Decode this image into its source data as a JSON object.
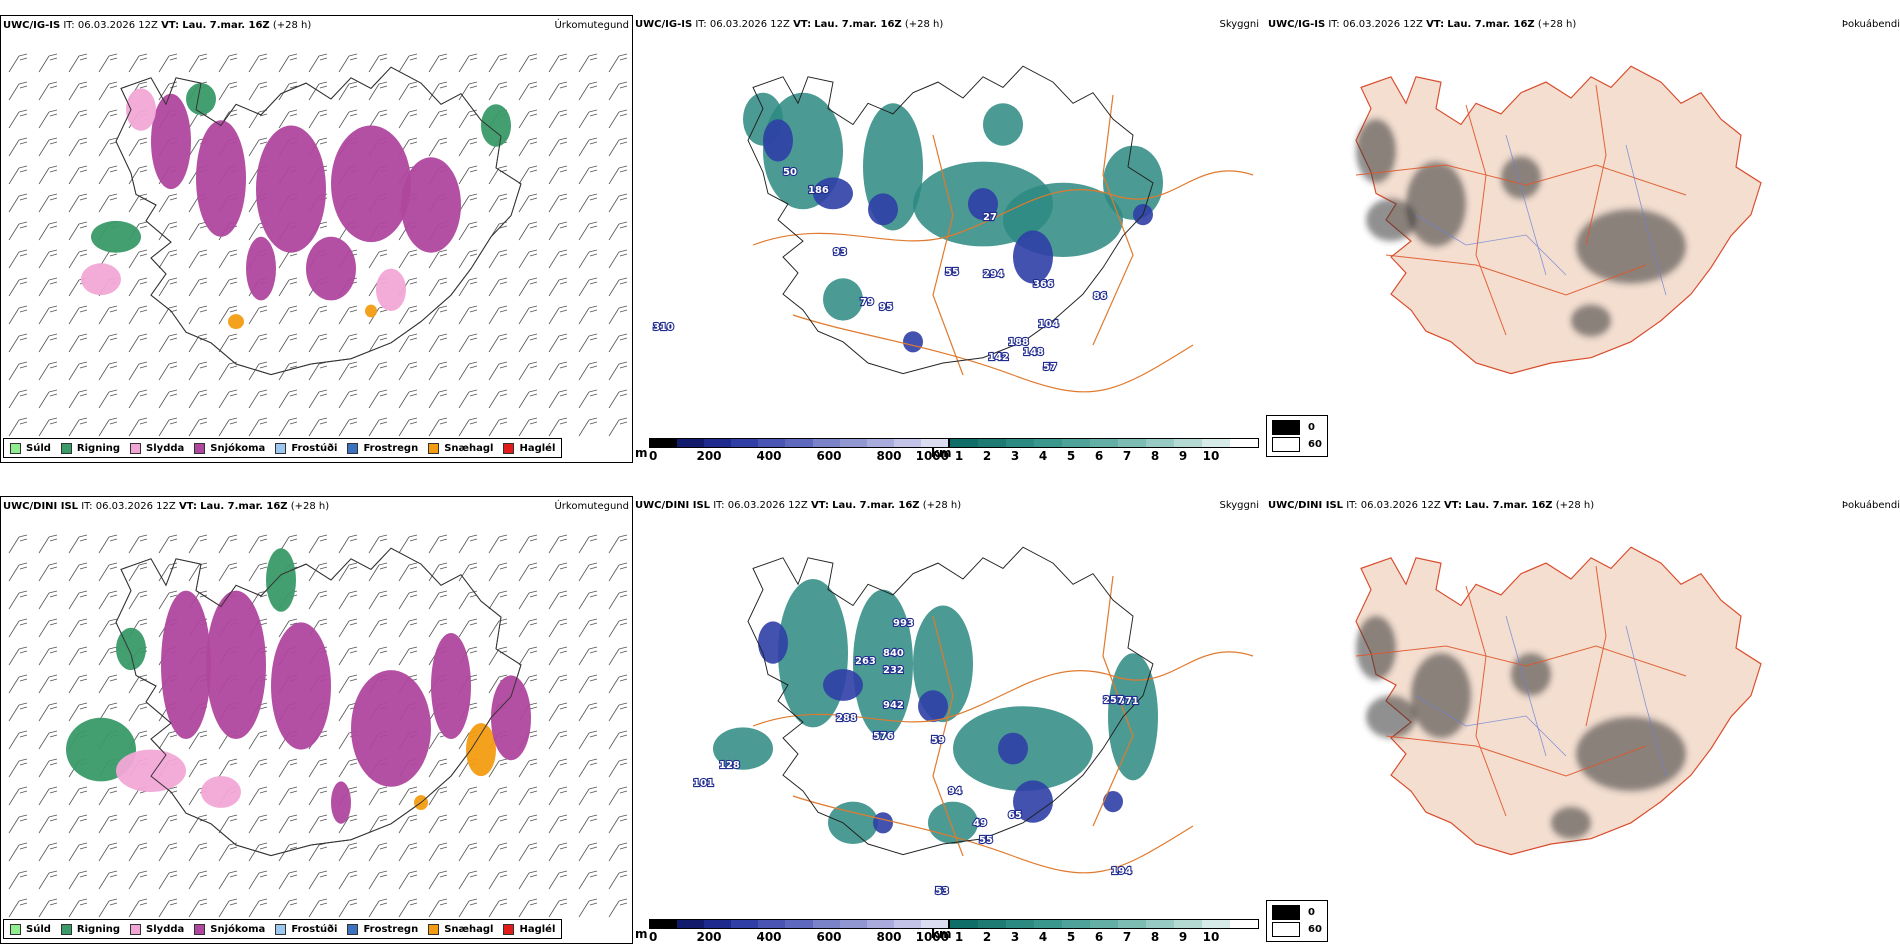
{
  "rows": [
    {
      "model": "UWC/IG-IS",
      "it_label": "IT:",
      "it_value": "06.03.2026 12Z",
      "vt_label": "VT:",
      "vt_value": "Lau. 7.mar. 16Z",
      "lead": "(+28 h)"
    },
    {
      "model": "UWC/DINI ISL",
      "it_label": "IT:",
      "it_value": "06.03.2026 12Z",
      "vt_label": "VT:",
      "vt_value": "Lau. 7.mar. 16Z",
      "lead": "(+28 h)"
    }
  ],
  "panel_titles": {
    "precip": "Úrkomutegund",
    "cloud": "Skyggni",
    "cover": "Þokuábendi"
  },
  "precip_legend": [
    {
      "label": "Súld",
      "color": "#90ee90"
    },
    {
      "label": "Rigning",
      "color": "#3a9a68"
    },
    {
      "label": "Slydda",
      "color": "#f2a6d6"
    },
    {
      "label": "Snjókoma",
      "color": "#b0479e"
    },
    {
      "label": "Frostúði",
      "color": "#9cc8ef"
    },
    {
      "label": "Frostregn",
      "color": "#3a72c0"
    },
    {
      "label": "Snæhagl",
      "color": "#f39c12"
    },
    {
      "label": "Haglél",
      "color": "#e21b1b"
    }
  ],
  "height_bar": {
    "unit": "m",
    "ticks": [
      "0",
      "200",
      "400",
      "600",
      "800",
      "1000"
    ],
    "colors": [
      "#000000",
      "#111a6b",
      "#1f2a8f",
      "#2f3fa6",
      "#4a55b3",
      "#5e69bd",
      "#7a82c8",
      "#9097d1",
      "#a8abdb",
      "#c2c3e6",
      "#dcdcf0"
    ]
  },
  "dist_bar": {
    "unit": "km",
    "ticks": [
      "1",
      "2",
      "3",
      "4",
      "5",
      "6",
      "7",
      "8",
      "9",
      "10"
    ],
    "colors": [
      "#0f6e68",
      "#1e7b73",
      "#2b8a81",
      "#3a978d",
      "#4ea299",
      "#63afa6",
      "#7cbcb3",
      "#97cac2",
      "#b4d9d2",
      "#d6ebe7",
      "#ffffff"
    ]
  },
  "fog_legend": [
    {
      "label": "0",
      "color": "#000000"
    },
    {
      "label": "60",
      "color": "#ffffff"
    }
  ],
  "labels_top": [
    "50",
    "186",
    "93",
    "55",
    "294",
    "366",
    "104",
    "188",
    "148",
    "142",
    "57",
    "86",
    "310",
    "27",
    "79",
    "95"
  ],
  "labels_bottom": [
    "993",
    "840",
    "263",
    "232",
    "942",
    "288",
    "576",
    "59",
    "94",
    "49",
    "65",
    "55",
    "101",
    "128",
    "53",
    "371",
    "257",
    "194"
  ]
}
